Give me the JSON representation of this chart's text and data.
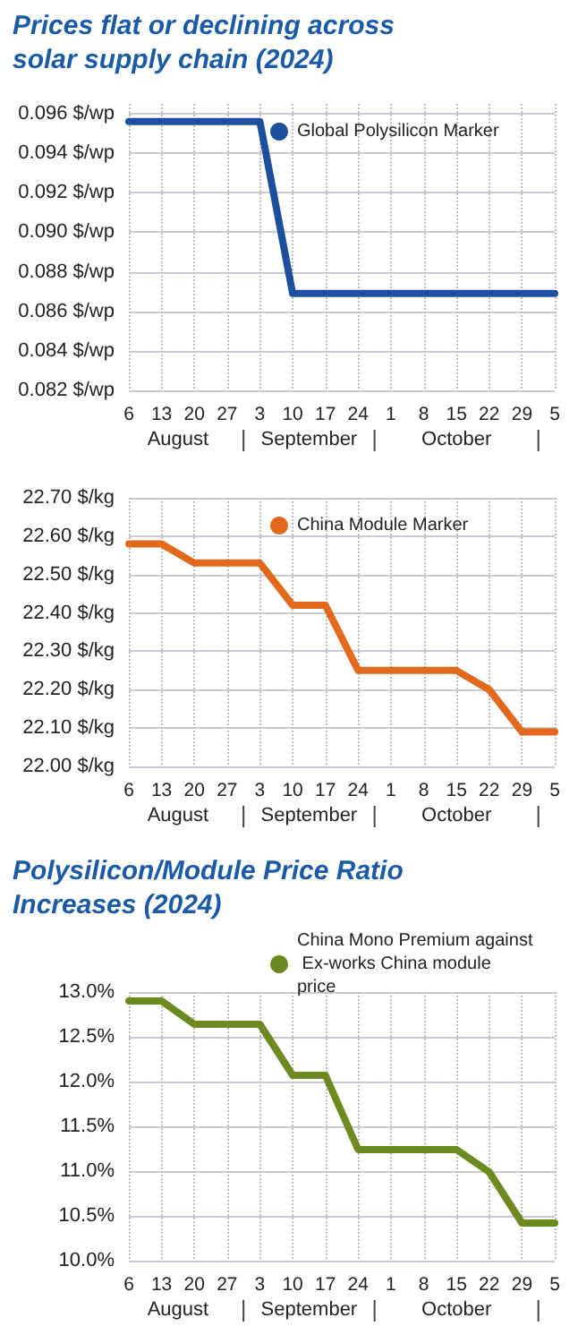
{
  "chart_data": [
    {
      "type": "line",
      "title": "Prices flat or declining across solar supply chain (2024)",
      "categories": [
        "6",
        "13",
        "20",
        "27",
        "3",
        "10",
        "17",
        "24",
        "1",
        "8",
        "15",
        "22",
        "29",
        "5"
      ],
      "series": [
        {
          "name": "Global Polysilicon Marker",
          "color": "#1c4f9c",
          "values": [
            0.0956,
            0.0956,
            0.0956,
            0.0956,
            0.0956,
            0.0869,
            0.0869,
            0.0869,
            0.0869,
            0.0869,
            0.0869,
            0.0869,
            0.0869,
            0.0869
          ]
        }
      ],
      "ylim": [
        0.082,
        0.0965
      ],
      "yticks": [
        {
          "value": 0.082,
          "label": "0.082 $/wp"
        },
        {
          "value": 0.084,
          "label": "0.084 $/wp"
        },
        {
          "value": 0.086,
          "label": "0.086 $/wp"
        },
        {
          "value": 0.088,
          "label": "0.088 $/wp"
        },
        {
          "value": 0.09,
          "label": "0.090 $/wp"
        },
        {
          "value": 0.092,
          "label": "0.092 $/wp"
        },
        {
          "value": 0.094,
          "label": "0.094 $/wp"
        },
        {
          "value": 0.096,
          "label": "0.096 $/wp"
        }
      ],
      "annotations": [
        "August",
        "September",
        "October"
      ],
      "grid": true,
      "legend": "top right",
      "marker": "none",
      "line_style": "solid"
    },
    {
      "type": "line",
      "categories": [
        "6",
        "13",
        "20",
        "27",
        "3",
        "10",
        "17",
        "24",
        "1",
        "8",
        "15",
        "22",
        "29",
        "5"
      ],
      "series": [
        {
          "name": "China Module Marker",
          "color": "#e2691c",
          "values": [
            22.58,
            22.58,
            22.53,
            22.53,
            22.53,
            22.42,
            22.42,
            22.25,
            22.25,
            22.25,
            22.25,
            22.2,
            22.09,
            22.09
          ]
        }
      ],
      "ylim": [
        22.0,
        22.7
      ],
      "yticks": [
        {
          "value": 22.0,
          "label": "22.00 $/kg"
        },
        {
          "value": 22.1,
          "label": "22.10 $/kg"
        },
        {
          "value": 22.2,
          "label": "22.20 $/kg"
        },
        {
          "value": 22.3,
          "label": "22.30 $/kg"
        },
        {
          "value": 22.4,
          "label": "22.40 $/kg"
        },
        {
          "value": 22.5,
          "label": "22.50 $/kg"
        },
        {
          "value": 22.6,
          "label": "22.60 $/kg"
        },
        {
          "value": 22.7,
          "label": "22.70 $/kg"
        }
      ],
      "annotations": [
        "August",
        "September",
        "October"
      ],
      "grid": true,
      "legend": "top right",
      "marker": "none",
      "line_style": "solid"
    },
    {
      "type": "line",
      "title": "Polysilicon/Module Price Ratio Increases (2024)",
      "categories": [
        "6",
        "13",
        "20",
        "27",
        "3",
        "10",
        "17",
        "24",
        "1",
        "8",
        "15",
        "22",
        "29",
        "5"
      ],
      "series": [
        {
          "name": "China Mono Premium against Ex-works China module price",
          "color": "#6b8a1f",
          "values": [
            12.9,
            12.9,
            12.64,
            12.64,
            12.64,
            12.07,
            12.07,
            11.24,
            11.24,
            11.24,
            11.24,
            10.99,
            10.42,
            10.42
          ]
        }
      ],
      "ylim": [
        10.0,
        13.0
      ],
      "yticks": [
        {
          "value": 10.0,
          "label": "10.0%"
        },
        {
          "value": 10.5,
          "label": "10.5%"
        },
        {
          "value": 11.0,
          "label": "11.0%"
        },
        {
          "value": 11.5,
          "label": "11.5%"
        },
        {
          "value": 12.0,
          "label": "12.0%"
        },
        {
          "value": 12.5,
          "label": "12.5%"
        },
        {
          "value": 13.0,
          "label": "13.0%"
        }
      ],
      "annotations": [
        "August",
        "September",
        "October"
      ],
      "grid": true,
      "legend": "top right",
      "marker": "none",
      "line_style": "solid"
    }
  ]
}
